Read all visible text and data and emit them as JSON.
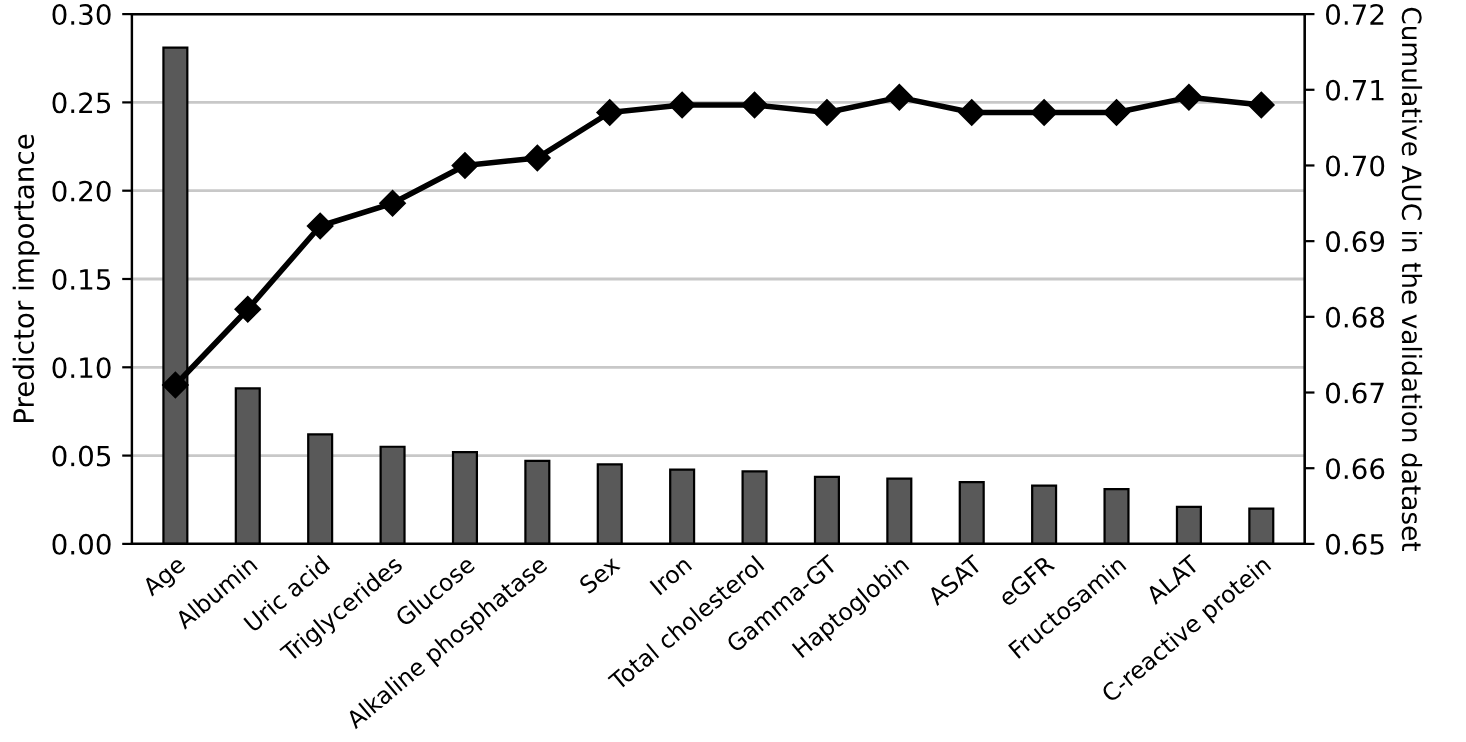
{
  "chart_data": {
    "type": "bar",
    "ylabel": "Predictor importance",
    "y2label": "Cumulative AUC in the validation dataset",
    "categories": [
      "Age",
      "Albumin",
      "Uric acid",
      "Triglycerides",
      "Glucose",
      "Alkaline phosphatase",
      "Sex",
      "Iron",
      "Total cholesterol",
      "Gamma-GT",
      "Haptoglobin",
      "ASAT",
      "eGFR",
      "Fructosamin",
      "ALAT",
      "C-reactive protein"
    ],
    "series": [
      {
        "color": "#595959",
        "values": [
          0.281,
          0.088,
          0.062,
          0.055,
          0.052,
          0.047,
          0.045,
          0.042,
          0.041,
          0.038,
          0.037,
          0.035,
          0.033,
          0.031,
          0.021,
          0.02
        ]
      },
      {
        "type": "line",
        "axis": "y2",
        "color": "#000000",
        "marker": "diamond",
        "values": [
          0.671,
          0.681,
          0.692,
          0.695,
          0.7,
          0.701,
          0.707,
          0.708,
          0.708,
          0.707,
          0.709,
          0.707,
          0.707,
          0.707,
          0.709,
          0.708
        ]
      }
    ],
    "ylim": [
      0,
      0.3
    ],
    "yticks": [
      {
        "value": 0,
        "label": "0.00"
      },
      {
        "value": 0.05,
        "label": "0.05"
      },
      {
        "value": 0.1,
        "label": "0.10"
      },
      {
        "value": 0.15,
        "label": "0.15"
      },
      {
        "value": 0.2,
        "label": "0.20"
      },
      {
        "value": 0.25,
        "label": "0.25"
      },
      {
        "value": 0.3,
        "label": "0.30"
      }
    ],
    "y2lim": [
      0.65,
      0.72
    ],
    "y2ticks": [
      0.65,
      0.66,
      0.67,
      0.68,
      0.69,
      {
        "value": 0.7,
        "label": "0.70"
      },
      0.71,
      0.72
    ],
    "grid": "y"
  }
}
